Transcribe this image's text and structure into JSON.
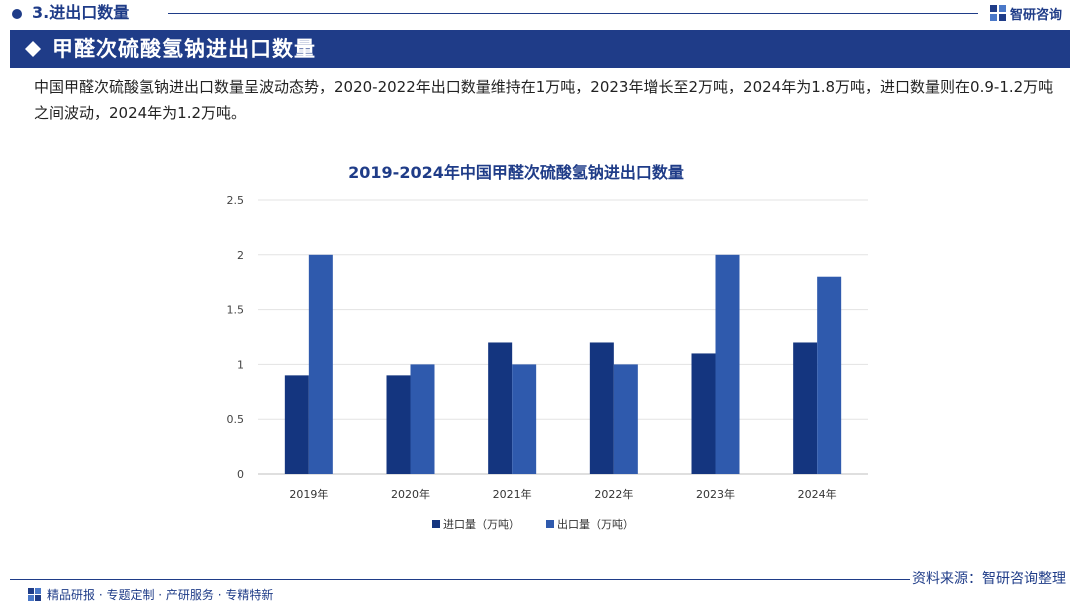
{
  "header": {
    "section_label": "3.进出口数量",
    "brand_name": "智研咨询"
  },
  "title": "甲醛次硫酸氢钠进出口数量",
  "intro": "中国甲醛次硫酸氢钠进出口数量呈波动态势，2020-2022年出口数量维持在1万吨，2023年增长至2万吨，2024年为1.8万吨，进口数量则在0.9-1.2万吨之间波动，2024年为1.2万吨。",
  "chart_data": {
    "type": "bar",
    "title": "2019-2024年中国甲醛次硫酸氢钠进出口数量",
    "categories": [
      "2019年",
      "2020年",
      "2021年",
      "2022年",
      "2023年",
      "2024年"
    ],
    "series": [
      {
        "name": "进口量（万吨）",
        "values": [
          0.9,
          0.9,
          1.2,
          1.2,
          1.1,
          1.2
        ],
        "color": "#14357f"
      },
      {
        "name": "出口量（万吨）",
        "values": [
          2.0,
          1.0,
          1.0,
          1.0,
          2.0,
          1.8
        ],
        "color": "#2f5aad"
      }
    ],
    "ylim": [
      0,
      2.5
    ],
    "yticks": [
      "0",
      "0.5",
      "1",
      "1.5",
      "2",
      "2.5"
    ],
    "grid": true,
    "legend_position": "bottom"
  },
  "footer": {
    "services": "精品研报 · 专题定制 · 产研服务 · 专精特新",
    "source": "资料来源：智研咨询整理"
  },
  "colors": {
    "primary": "#1f3c88",
    "import_bar": "#14357f",
    "export_bar": "#2f5aad"
  }
}
